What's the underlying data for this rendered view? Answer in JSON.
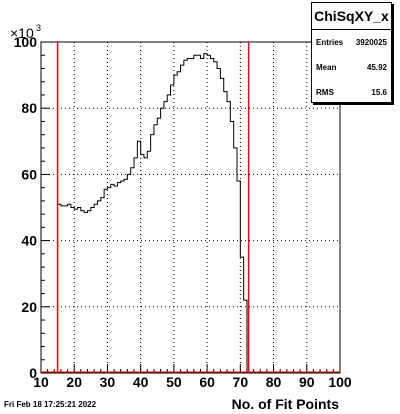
{
  "stats": {
    "title": "ChiSqXY_x",
    "rows": [
      {
        "label": "Entries",
        "value": "3920025"
      },
      {
        "label": "Mean",
        "value": "45.92"
      },
      {
        "label": "RMS",
        "value": "15.6"
      }
    ]
  },
  "footer": {
    "date": "Fri Feb 18 17:25:21 2022"
  },
  "chart_data": {
    "type": "histogram",
    "title": "",
    "xlabel": "No. of Fit Points",
    "ylabel": "",
    "y_exponent_label": "×10",
    "y_exponent": "3",
    "xlim": [
      10,
      100
    ],
    "ylim": [
      0,
      100
    ],
    "grid": true,
    "xticks": [
      "10",
      "20",
      "30",
      "40",
      "50",
      "60",
      "70",
      "80",
      "90",
      "100"
    ],
    "yticks": [
      "0",
      "20",
      "40",
      "60",
      "80",
      "100"
    ],
    "x": [
      15,
      16,
      17,
      18,
      19,
      20,
      21,
      22,
      23,
      24,
      25,
      26,
      27,
      28,
      29,
      30,
      31,
      32,
      33,
      34,
      35,
      36,
      37,
      38,
      39,
      40,
      41,
      42,
      43,
      44,
      45,
      46,
      47,
      48,
      49,
      50,
      51,
      52,
      53,
      54,
      55,
      56,
      57,
      58,
      59,
      60,
      61,
      62,
      63,
      64,
      65,
      66,
      67,
      68,
      69,
      70,
      71,
      72
    ],
    "values": [
      51,
      50.5,
      50.5,
      51,
      50,
      49.5,
      50,
      49,
      48.5,
      49,
      50,
      51,
      52,
      53,
      55.5,
      56,
      57,
      56.5,
      57.5,
      58,
      58.5,
      60,
      62,
      65,
      70,
      66,
      65,
      67,
      72,
      75,
      77,
      80,
      82,
      84,
      87,
      90,
      91,
      93,
      94.5,
      95,
      95,
      96,
      96,
      95,
      96.5,
      96,
      95,
      94,
      92,
      89,
      85,
      82,
      76,
      68,
      58,
      35,
      22,
      0
    ],
    "bin_width": 1,
    "cut_lines": [
      15,
      72.5
    ],
    "colors": {
      "histogram": "#000000",
      "cut_lines": "#ff0000"
    }
  }
}
